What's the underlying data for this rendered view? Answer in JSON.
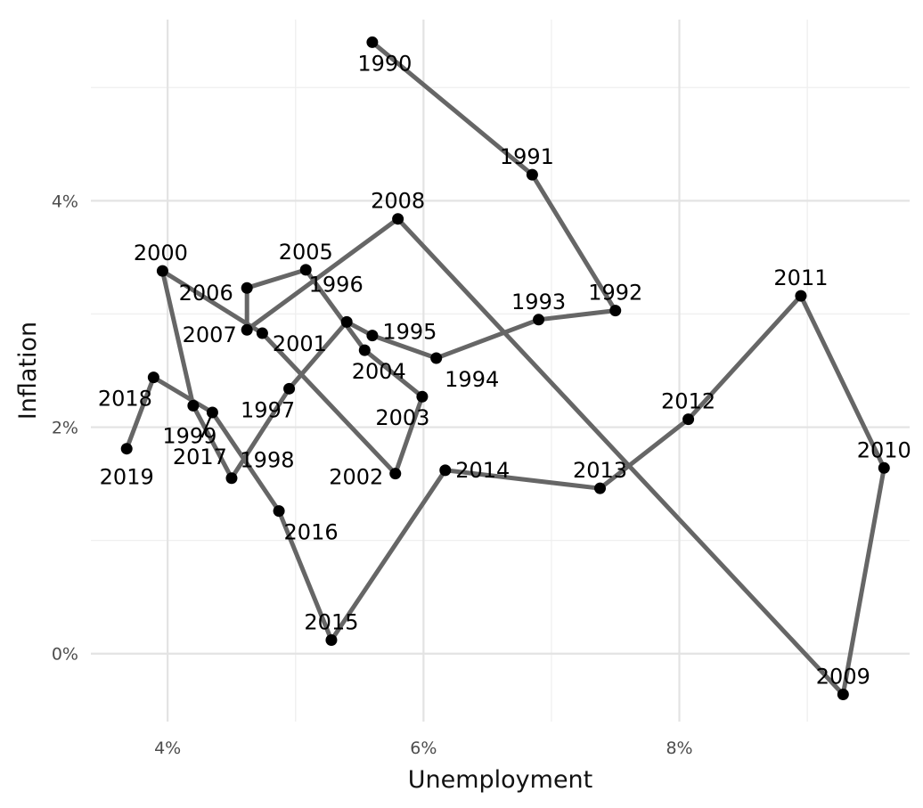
{
  "chart_data": {
    "type": "line",
    "xlabel": "Unemployment",
    "ylabel": "Inflation",
    "xlim": [
      3.4,
      9.8
    ],
    "ylim": [
      -0.6,
      5.6
    ],
    "x_ticks": [
      {
        "value": 4,
        "label": "4%"
      },
      {
        "value": 6,
        "label": "6%"
      },
      {
        "value": 8,
        "label": "8%"
      }
    ],
    "y_ticks": [
      {
        "value": 0,
        "label": "0%"
      },
      {
        "value": 2,
        "label": "2%"
      },
      {
        "value": 4,
        "label": "4%"
      }
    ],
    "grid": true,
    "line_color": "#666666",
    "point_color": "#000000",
    "points": [
      {
        "year": "1990",
        "x": 5.6,
        "y": 5.4
      },
      {
        "year": "1991",
        "x": 6.85,
        "y": 4.23
      },
      {
        "year": "1992",
        "x": 7.5,
        "y": 3.03
      },
      {
        "year": "1993",
        "x": 6.9,
        "y": 2.95
      },
      {
        "year": "1994",
        "x": 6.1,
        "y": 2.61
      },
      {
        "year": "1995",
        "x": 5.6,
        "y": 2.81
      },
      {
        "year": "1996",
        "x": 5.4,
        "y": 2.93
      },
      {
        "year": "1997",
        "x": 4.95,
        "y": 2.34
      },
      {
        "year": "1998",
        "x": 4.5,
        "y": 1.55
      },
      {
        "year": "1999",
        "x": 4.2,
        "y": 2.19
      },
      {
        "year": "2000",
        "x": 3.96,
        "y": 3.38
      },
      {
        "year": "2001",
        "x": 4.74,
        "y": 2.83
      },
      {
        "year": "2002",
        "x": 5.78,
        "y": 1.59
      },
      {
        "year": "2003",
        "x": 5.99,
        "y": 2.27
      },
      {
        "year": "2004",
        "x": 5.54,
        "y": 2.68
      },
      {
        "year": "2005",
        "x": 5.08,
        "y": 3.39
      },
      {
        "year": "2006",
        "x": 4.62,
        "y": 3.23
      },
      {
        "year": "2007",
        "x": 4.62,
        "y": 2.86
      },
      {
        "year": "2008",
        "x": 5.8,
        "y": 3.84
      },
      {
        "year": "2009",
        "x": 9.28,
        "y": -0.36
      },
      {
        "year": "2010",
        "x": 9.6,
        "y": 1.64
      },
      {
        "year": "2011",
        "x": 8.95,
        "y": 3.16
      },
      {
        "year": "2012",
        "x": 8.07,
        "y": 2.07
      },
      {
        "year": "2013",
        "x": 7.38,
        "y": 1.46
      },
      {
        "year": "2014",
        "x": 6.17,
        "y": 1.62
      },
      {
        "year": "2015",
        "x": 5.28,
        "y": 0.12
      },
      {
        "year": "2016",
        "x": 4.87,
        "y": 1.26
      },
      {
        "year": "2017",
        "x": 4.35,
        "y": 2.13
      },
      {
        "year": "2018",
        "x": 3.89,
        "y": 2.44
      },
      {
        "year": "2019",
        "x": 3.68,
        "y": 1.81
      }
    ]
  }
}
